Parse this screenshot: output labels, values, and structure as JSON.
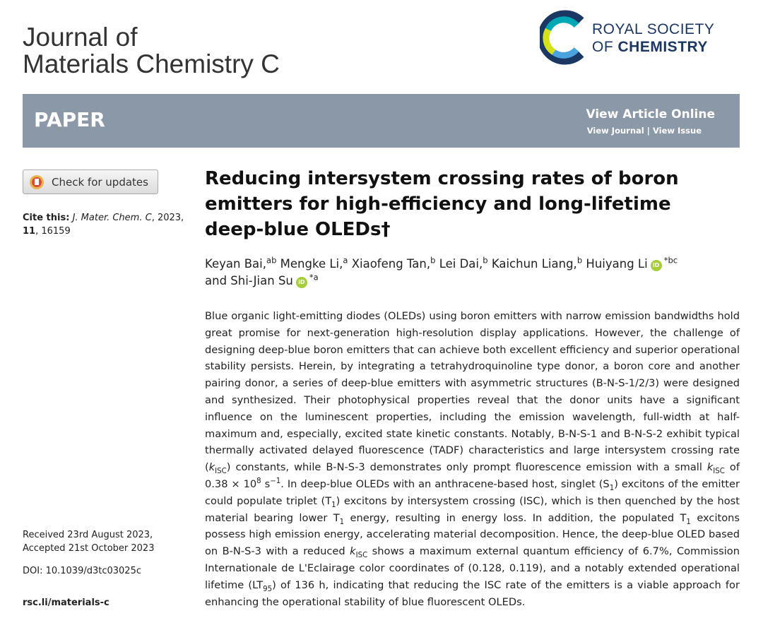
{
  "header": {
    "journal": [
      "Journal of",
      "Materials Chemistry C"
    ],
    "publisher": [
      "ROYAL SOCIETY",
      "OF",
      "CHEMISTRY"
    ]
  },
  "banner": {
    "section": "PAPER",
    "view_online": "View Article Online",
    "view_journal": "View Journal",
    "separator": "|",
    "view_issue": "View Issue"
  },
  "sidebar": {
    "check_updates": "Check for updates",
    "cite": [
      {
        "b": "Cite this:"
      },
      " ",
      {
        "i": "J. Mater. Chem. C"
      },
      ", 2023, ",
      {
        "b": "11"
      },
      ", 16159"
    ],
    "received": "Received 23rd August 2023,",
    "accepted": "Accepted 21st October 2023",
    "doi": "DOI: 10.1039/d3tc03025c",
    "url": "rsc.li/materials-c"
  },
  "article": {
    "title": "Reducing intersystem crossing rates of boron emitters for high-efficiency and long-lifetime deep-blue OLEDs†",
    "orcid_label": "iD",
    "authors": [
      {
        "name": "Keyan Bai,",
        "aff": "ab"
      },
      {
        "name": "Mengke Li,",
        "aff": "a"
      },
      {
        "name": "Xiaofeng Tan,",
        "aff": "b"
      },
      {
        "name": "Lei Dai,",
        "aff": "b"
      },
      {
        "name": "Kaichun Liang,",
        "aff": "b"
      },
      {
        "name": "Huiyang Li",
        "orcid": true,
        "aff": "*bc"
      },
      {
        "name": "and Shi-Jian Su",
        "orcid": true,
        "aff": "*a"
      }
    ],
    "abstract": [
      "Blue organic light-emitting diodes (OLEDs) using boron emitters with narrow emission bandwidths hold great promise for next-generation high-resolution display applications. However, the challenge of designing deep-blue boron emitters that can achieve both excellent efficiency and superior operational stability persists. Herein, by integrating a tetrahydroquinoline type donor, a boron core and another pairing donor, a series of deep-blue emitters with asymmetric structures (B-N-S-1/2/3) were designed and synthesized. Their photophysical properties reveal that the donor units have a significant influence on the luminescent properties, including the emission wavelength, full-width at half-maximum and, especially, excited state kinetic constants. Notably, B-N-S-1 and B-N-S-2 exhibit typical thermally activated delayed fluorescence (TADF) characteristics and large intersystem crossing rate (",
      {
        "i": "k"
      },
      {
        "sub": "ISC"
      },
      ") constants, while B-N-S-3 demonstrates only prompt fluorescence emission with a small ",
      {
        "i": "k"
      },
      {
        "sub": "ISC"
      },
      " of 0.38 × 10",
      {
        "sup": "8"
      },
      " s",
      {
        "sup": "−1"
      },
      ". In deep-blue OLEDs with an anthracene-based host, singlet (S",
      {
        "sub": "1"
      },
      ") excitons of the emitter could populate triplet (T",
      {
        "sub": "1"
      },
      ") excitons by intersystem crossing (ISC), which is then quenched by the host material bearing lower T",
      {
        "sub": "1"
      },
      " energy, resulting in energy loss. In addition, the populated T",
      {
        "sub": "1"
      },
      " excitons possess high emission energy, accelerating material decomposition. Hence, the deep-blue OLED based on B-N-S-3 with a reduced ",
      {
        "i": "k"
      },
      {
        "sub": "ISC"
      },
      " shows a maximum external quantum efficiency of 6.7%, Commission Internationale de L'Eclairage color coordinates of (0.128, 0.119), and a notably extended operational lifetime (LT",
      {
        "sub": "95"
      },
      ") of 136 h, indicating that reducing the ISC rate of the emitters is a viable approach for enhancing the operational stability of blue fluorescent OLEDs."
    ]
  }
}
